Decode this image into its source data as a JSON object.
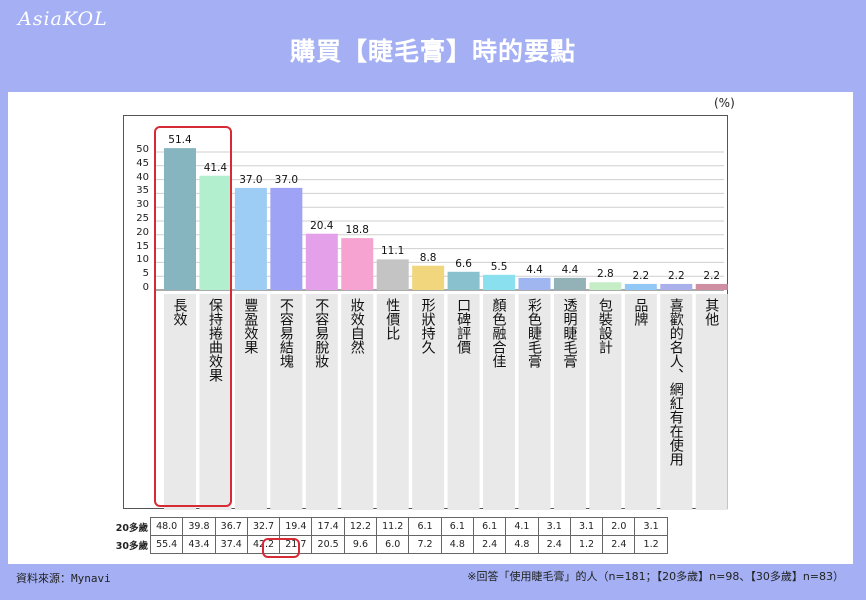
{
  "brand": "AsiaKOL",
  "title": "購買【睫毛膏】時的要點",
  "chart_data": {
    "type": "bar",
    "unit": "(%)",
    "yticks": [
      "50",
      "45",
      "40",
      "35",
      "30",
      "25",
      "20",
      "15",
      "10",
      "5",
      "0"
    ],
    "ylim": [
      0,
      55
    ],
    "categories": [
      "長效",
      "保持捲曲效果",
      "豐盈效果",
      "不容易結塊",
      "不容易脫妝",
      "妝效自然",
      "性價比",
      "形狀持久",
      "口碑評價",
      "顏色融合佳",
      "彩色睫毛膏",
      "透明睫毛膏",
      "包裝設計",
      "品牌",
      "喜歡的名人、網紅有在使用",
      "其他"
    ],
    "values": [
      51.4,
      41.4,
      37.0,
      37.0,
      20.4,
      18.8,
      11.1,
      8.8,
      6.6,
      5.5,
      4.4,
      4.4,
      2.8,
      2.2,
      2.2,
      2.2
    ],
    "value_labels": [
      "51.4",
      "41.4",
      "37.0",
      "37.0",
      "20.4",
      "18.8",
      "11.1",
      "8.8",
      "6.6",
      "5.5",
      "4.4",
      "4.4",
      "2.8",
      "2.2",
      "2.2",
      "2.2"
    ],
    "colors": [
      "#86b4bf",
      "#b2efcf",
      "#9dcdf5",
      "#9ea3f5",
      "#e4a0e8",
      "#f7a3d1",
      "#c4c4c4",
      "#f1d67e",
      "#8ac1cf",
      "#8ae0ee",
      "#9fb6f0",
      "#93b2b8",
      "#c6eec6",
      "#92c8f5",
      "#a9b0ec",
      "#cf8ea2"
    ],
    "table": {
      "rows": [
        {
          "label": "20多歲",
          "values": [
            "48.0",
            "39.8",
            "36.7",
            "32.7",
            "19.4",
            "17.4",
            "12.2",
            "11.2",
            "6.1",
            "6.1",
            "6.1",
            "4.1",
            "3.1",
            "3.1",
            "2.0",
            "3.1"
          ]
        },
        {
          "label": "30多歲",
          "values": [
            "55.4",
            "43.4",
            "37.4",
            "42.2",
            "21.7",
            "20.5",
            "9.6",
            "6.0",
            "7.2",
            "4.8",
            "2.4",
            "4.8",
            "2.4",
            "1.2",
            "2.4",
            "1.2"
          ]
        }
      ]
    }
  },
  "source": "資料來源：Mynavi",
  "note": "※回答「使用睫毛膏」的人（n=181；【20多歲】n=98、【30多歲】n=83）"
}
